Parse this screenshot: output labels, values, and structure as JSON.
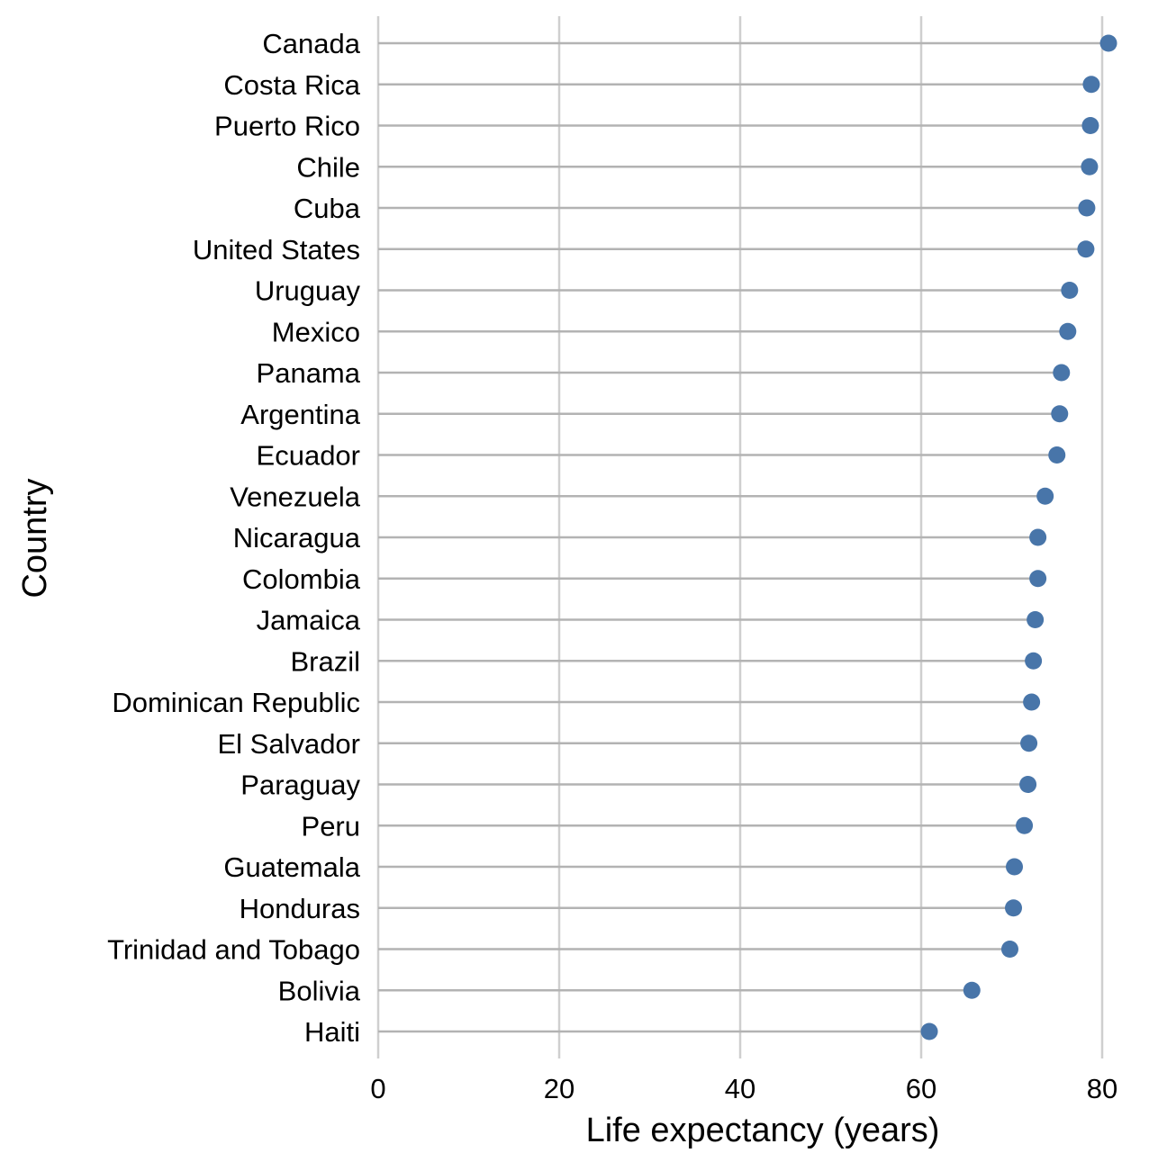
{
  "chart_data": {
    "type": "lollipop",
    "xlabel": "Life expectancy (years)",
    "ylabel": "Country",
    "xlim": [
      0,
      81
    ],
    "x_ticks": [
      0,
      20,
      40,
      60,
      80
    ],
    "x_tick_labels": [
      "0",
      "20",
      "40",
      "60",
      "80"
    ],
    "grid": "vertical major gridlines",
    "categories": [
      "Canada",
      "Costa Rica",
      "Puerto Rico",
      "Chile",
      "Cuba",
      "United States",
      "Uruguay",
      "Mexico",
      "Panama",
      "Argentina",
      "Ecuador",
      "Venezuela",
      "Nicaragua",
      "Colombia",
      "Jamaica",
      "Brazil",
      "Dominican Republic",
      "El Salvador",
      "Paraguay",
      "Peru",
      "Guatemala",
      "Honduras",
      "Trinidad and Tobago",
      "Bolivia",
      "Haiti"
    ],
    "values": [
      80.7,
      78.8,
      78.7,
      78.6,
      78.3,
      78.2,
      76.4,
      76.2,
      75.5,
      75.3,
      75.0,
      73.7,
      72.9,
      72.9,
      72.6,
      72.4,
      72.2,
      71.9,
      71.8,
      71.4,
      70.3,
      70.2,
      69.8,
      65.6,
      60.9
    ],
    "colors": {
      "point": "#4875a9",
      "stem": "#b3b3b3",
      "grid": "#cfcfcf"
    }
  }
}
